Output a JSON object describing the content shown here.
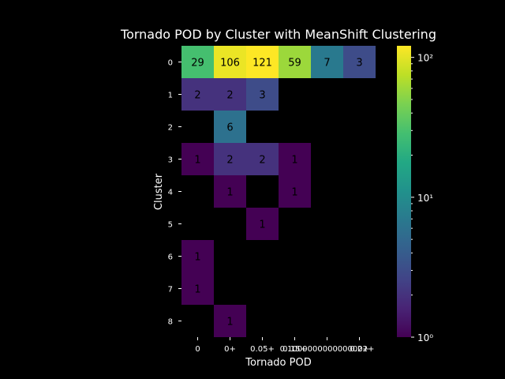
{
  "chart_data": {
    "type": "heatmap",
    "title": "Tornado POD by Cluster with MeanShift Clustering",
    "xlabel": "Tornado POD",
    "ylabel": "Cluster",
    "x_categories": [
      "0",
      "0+",
      "0.05+",
      "0.15+",
      "0.1000000000000002+",
      "0.2+"
    ],
    "y_categories": [
      "0",
      "1",
      "2",
      "3",
      "4",
      "5",
      "6",
      "7",
      "8"
    ],
    "values": [
      [
        29,
        106,
        121,
        59,
        7,
        3
      ],
      [
        2,
        2,
        3,
        null,
        null,
        null
      ],
      [
        null,
        6,
        null,
        null,
        null,
        null
      ],
      [
        1,
        2,
        2,
        1,
        null,
        null
      ],
      [
        null,
        1,
        null,
        1,
        null,
        null
      ],
      [
        null,
        null,
        1,
        null,
        null,
        null
      ],
      [
        1,
        null,
        null,
        null,
        null,
        null
      ],
      [
        1,
        null,
        null,
        null,
        null,
        null
      ],
      [
        null,
        1,
        null,
        null,
        null,
        null
      ]
    ],
    "colorbar": {
      "scale": "log",
      "min": 1,
      "max": 121,
      "colormap": "viridis",
      "ticks": [
        {
          "value": 1,
          "label": "10⁰"
        },
        {
          "value": 10,
          "label": "10¹"
        },
        {
          "value": 100,
          "label": "10²"
        }
      ]
    },
    "empty_cell_color": "#000000"
  }
}
